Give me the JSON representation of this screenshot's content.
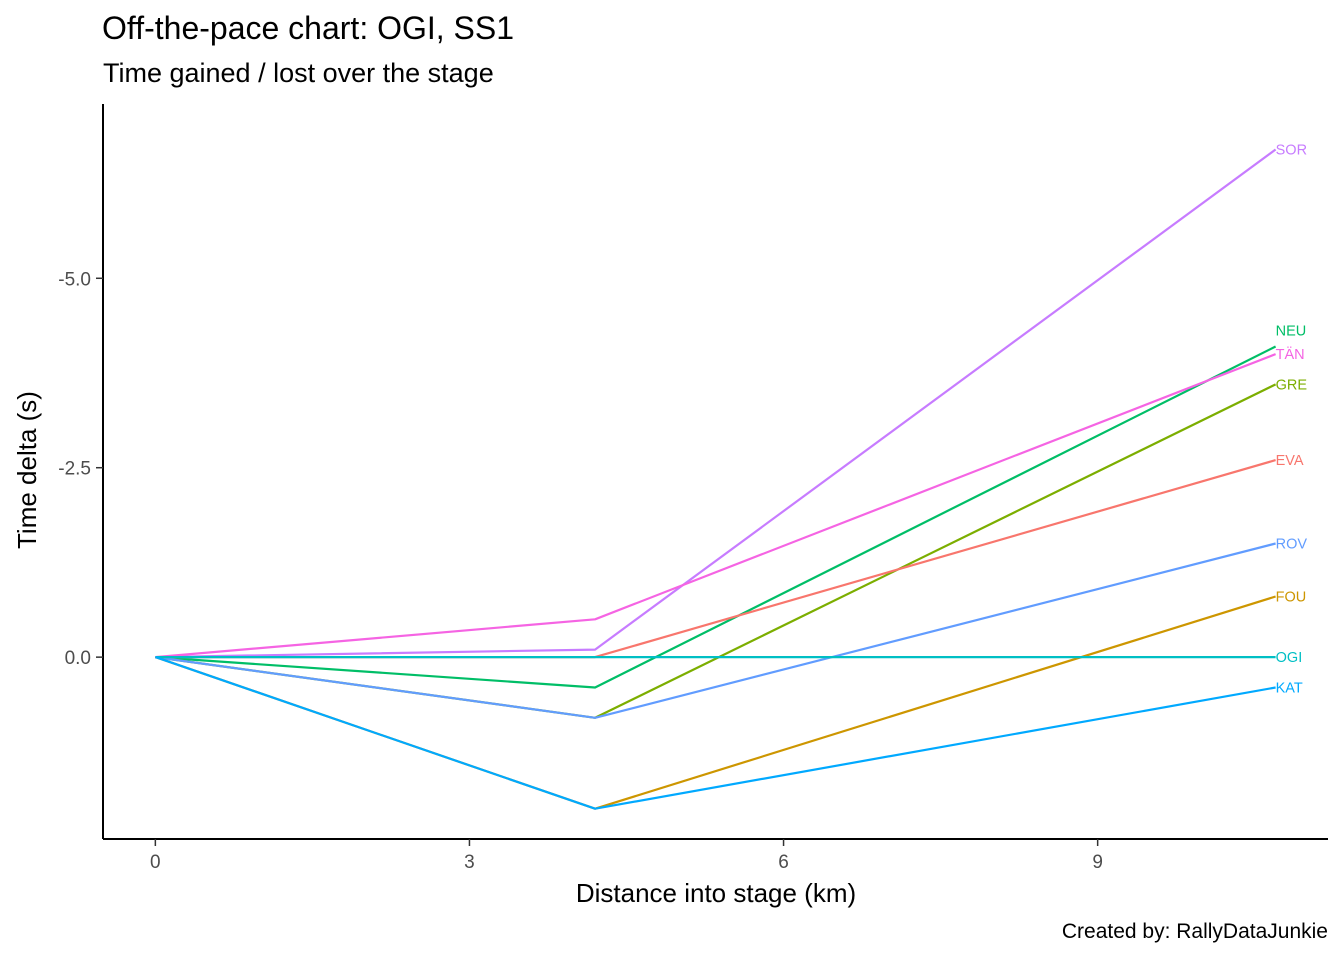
{
  "chart_data": {
    "type": "line",
    "title": "Off-the-pace chart: OGI, SS1",
    "subtitle": "Time gained / lost over the stage",
    "caption": "Created by: RallyDataJunkie",
    "xlabel": "Distance into stage (km)",
    "ylabel": "Time delta (s)",
    "xlim": [
      -0.5,
      11.2
    ],
    "ylim": [
      2.4,
      -7.3
    ],
    "y_reversed": true,
    "x_ticks": [
      0,
      3,
      6,
      9
    ],
    "x_tick_labels": [
      "0",
      "3",
      "6",
      "9"
    ],
    "y_ticks": [
      -5.0,
      -2.5,
      0.0
    ],
    "y_tick_labels": [
      "-5.0",
      "-2.5",
      "0.0"
    ],
    "grid": false,
    "legend": "none (labels at line ends)",
    "x": [
      0,
      4.2,
      10.7
    ],
    "series": [
      {
        "name": "SOR",
        "color": "#C77CFF",
        "values": [
          0,
          -0.1,
          -6.7
        ]
      },
      {
        "name": "NEU",
        "color": "#00BE67",
        "values": [
          0,
          0.4,
          -4.1
        ]
      },
      {
        "name": "TÄN",
        "color": "#F564E3",
        "values": [
          0,
          -0.5,
          -4.0
        ]
      },
      {
        "name": "GRE",
        "color": "#7CAE00",
        "values": [
          0,
          0.8,
          -3.6
        ]
      },
      {
        "name": "EVA",
        "color": "#F8766D",
        "values": [
          0,
          0.0,
          -2.6
        ]
      },
      {
        "name": "ROV",
        "color": "#619CFF",
        "values": [
          0,
          0.8,
          -1.5
        ]
      },
      {
        "name": "FOU",
        "color": "#CD9600",
        "values": [
          0,
          2.0,
          -0.8
        ]
      },
      {
        "name": "OGI",
        "color": "#00BFC4",
        "values": [
          0,
          0.0,
          0.0
        ]
      },
      {
        "name": "KAT",
        "color": "#00A9FF",
        "values": [
          0,
          2.0,
          0.4
        ]
      }
    ]
  }
}
